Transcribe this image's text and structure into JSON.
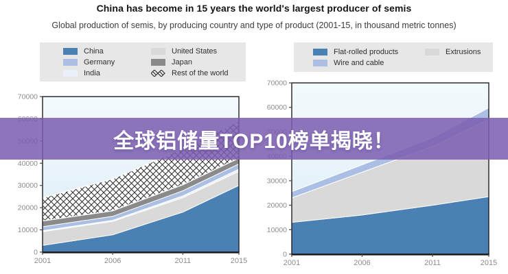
{
  "header": {
    "title": "China has become in 15 years the world's largest producer of semis",
    "subtitle": "Global production of semis, by producing country and type of product (2001-15, in thousand metric tonnes)"
  },
  "banner": {
    "text": "全球铝储量TOP10榜单揭晓！",
    "background_color_rgba": "rgba(124,94,176,0.86)",
    "text_color": "#ffffff"
  },
  "colors": {
    "china_blue": "#4a80b4",
    "periwinkle_light_blue": "#aabfe3",
    "india_pale_blue": "#eaf0f8",
    "light_gray": "#d9d9d9",
    "dark_gray": "#8a8a8a",
    "plot_background_top": "#f4fafd",
    "plot_background_bottom": "#dcedf7",
    "legend_background": "#e7e7e7",
    "axis_color": "#1f1f1f",
    "tick_label_color": "#8c8c8c",
    "hatch_line_color": "#2b2b2b"
  },
  "legends": [
    {
      "id": "countries",
      "items": [
        {
          "label": "China",
          "swatch": "#4a80b4"
        },
        {
          "label": "United States",
          "swatch": "#d9d9d9"
        },
        {
          "label": "Germany",
          "swatch": "#aabfe3"
        },
        {
          "label": "Japan",
          "swatch": "#8a8a8a"
        },
        {
          "label": "India",
          "swatch": "#eaf0f8"
        },
        {
          "label": "Rest of the world",
          "swatch": "crosshatch"
        }
      ]
    },
    {
      "id": "products",
      "items": [
        {
          "label": "Flat-rolled products",
          "swatch": "#4a80b4"
        },
        {
          "label": "Extrusions",
          "swatch": "#d9d9d9"
        },
        {
          "label": "Wire and cable",
          "swatch": "#aabfe3"
        }
      ]
    }
  ],
  "chart_data": [
    {
      "type": "area",
      "stacked": true,
      "name": "production-by-country",
      "x": [
        2001,
        2006,
        2011,
        2015
      ],
      "x_tick_labels": [
        "2001",
        "2006",
        "2011",
        "2015"
      ],
      "ylim": [
        0,
        70000
      ],
      "y_ticks": [
        0,
        10000,
        20000,
        30000,
        40000,
        50000,
        60000,
        70000
      ],
      "legend_position": "top",
      "grid": false,
      "series": [
        {
          "name": "China",
          "fill": "#4a80b4",
          "values": [
            3000,
            7800,
            18000,
            30000
          ]
        },
        {
          "name": "United States",
          "fill": "#d9d9d9",
          "values": [
            6200,
            6000,
            6500,
            6300
          ]
        },
        {
          "name": "India",
          "fill": "#eaf0f8",
          "values": [
            400,
            500,
            800,
            1000
          ]
        },
        {
          "name": "Germany",
          "fill": "#aabfe3",
          "values": [
            1800,
            1800,
            2300,
            2400
          ]
        },
        {
          "name": "Japan",
          "fill": "#8a8a8a",
          "values": [
            2600,
            2500,
            2700,
            2600
          ]
        },
        {
          "name": "Rest of the world",
          "fill": "crosshatch",
          "values": [
            10500,
            14400,
            16200,
            16700
          ]
        }
      ]
    },
    {
      "type": "area",
      "stacked": true,
      "name": "production-by-product-type",
      "x": [
        2001,
        2006,
        2011,
        2015
      ],
      "x_tick_labels": [
        "2001",
        "2006",
        "2011",
        "2015"
      ],
      "ylim": [
        0,
        70000
      ],
      "y_ticks": [
        0,
        10000,
        20000,
        30000,
        40000,
        50000,
        60000,
        70000
      ],
      "legend_position": "top",
      "grid": false,
      "series": [
        {
          "name": "Flat-rolled products",
          "fill": "#4a80b4",
          "values": [
            13000,
            16000,
            20000,
            23500
          ]
        },
        {
          "name": "Extrusions",
          "fill": "#d9d9d9",
          "values": [
            10000,
            17500,
            24000,
            31500
          ]
        },
        {
          "name": "Wire and cable",
          "fill": "#aabfe3",
          "values": [
            2500,
            3000,
            3500,
            4800
          ]
        }
      ]
    }
  ]
}
